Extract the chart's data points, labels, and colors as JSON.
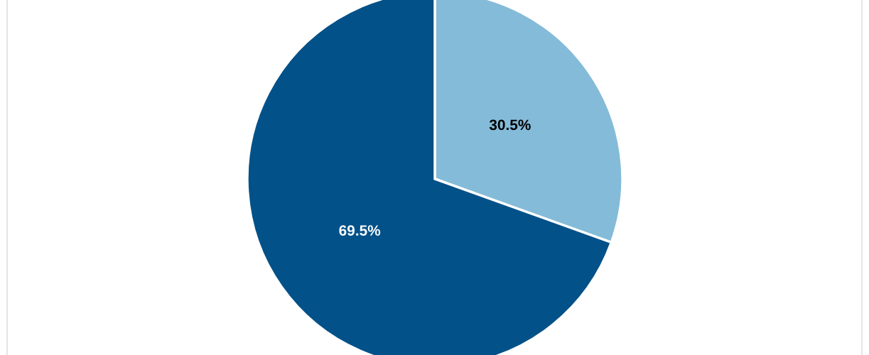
{
  "chart_data": {
    "type": "pie",
    "categories": [
      null,
      null
    ],
    "values": [
      30.5,
      69.5
    ],
    "colors": [
      "#84bbd9",
      "#025189"
    ],
    "value_labels": [
      "30.5%",
      "69.5%"
    ]
  }
}
